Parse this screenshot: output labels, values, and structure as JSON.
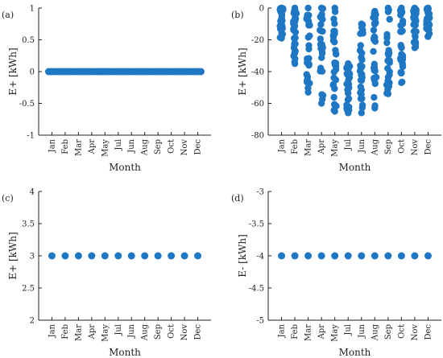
{
  "chart_data": [
    {
      "type": "scatter",
      "panel_label": "(a)",
      "ylabel": "E+ [kWh]",
      "xlabel": "Month",
      "categories": [
        "Jan",
        "Feb",
        "Mar",
        "Apr",
        "May",
        "Jul",
        "Jun",
        "Aug",
        "Sep",
        "Oct",
        "Nov",
        "Dec"
      ],
      "ylim": [
        -1,
        1
      ],
      "yticks": [
        -1,
        -0.5,
        0,
        0.5,
        1
      ],
      "ytick_labels": [
        "-1",
        "-0.5",
        "0",
        "0.5",
        "1"
      ],
      "values": [
        0,
        0,
        0,
        0,
        0,
        0,
        0,
        0,
        0,
        0,
        0,
        0
      ],
      "continuous": true,
      "color": "#1f77c4"
    },
    {
      "type": "scatter",
      "panel_label": "(b)",
      "ylabel": "E+ [kWh]",
      "xlabel": "Month",
      "categories": [
        "Jan",
        "Feb",
        "Mar",
        "Apr",
        "May",
        "Jul",
        "Jun",
        "Aug",
        "Sep",
        "Oct",
        "Nov",
        "Dec"
      ],
      "ylim": [
        -80,
        0
      ],
      "yticks": [
        -80,
        -60,
        -40,
        -20,
        0
      ],
      "ytick_labels": [
        "-80",
        "-60",
        "-40",
        "-20",
        "0"
      ],
      "ranges": [
        {
          "min": -19,
          "max": 0
        },
        {
          "min": -35,
          "max": 0
        },
        {
          "min": -53,
          "max": 0
        },
        {
          "min": -60,
          "max": 0
        },
        {
          "min": -65,
          "max": 0
        },
        {
          "min": -66,
          "max": -35
        },
        {
          "min": -66,
          "max": -10
        },
        {
          "min": -63,
          "max": -2
        },
        {
          "min": -54,
          "max": 0
        },
        {
          "min": -47,
          "max": 0
        },
        {
          "min": -25,
          "max": 0
        },
        {
          "min": -18,
          "max": 0
        }
      ],
      "color": "#1f77c4"
    },
    {
      "type": "scatter",
      "panel_label": "(c)",
      "ylabel": "E+ [kWh]",
      "xlabel": "Month",
      "categories": [
        "Jan",
        "Feb",
        "Mar",
        "Apr",
        "May",
        "Jul",
        "Jun",
        "Aug",
        "Sep",
        "Oct",
        "Nov",
        "Dec"
      ],
      "ylim": [
        2,
        4
      ],
      "yticks": [
        2,
        2.5,
        3,
        3.5,
        4
      ],
      "ytick_labels": [
        "2",
        "2.5",
        "3",
        "3.5",
        "4"
      ],
      "values": [
        3,
        3,
        3,
        3,
        3,
        3,
        3,
        3,
        3,
        3,
        3,
        3
      ],
      "color": "#1f77c4"
    },
    {
      "type": "scatter",
      "panel_label": "(d)",
      "ylabel": "E- [kWh]",
      "xlabel": "Month",
      "categories": [
        "Jan",
        "Feb",
        "Mar",
        "Apr",
        "May",
        "Jul",
        "Jun",
        "Aug",
        "Sep",
        "Oct",
        "Nov",
        "Dec"
      ],
      "ylim": [
        -5,
        -3
      ],
      "yticks": [
        -5,
        -4.5,
        -4,
        -3.5,
        -3
      ],
      "ytick_labels": [
        "-5",
        "-4.5",
        "-4",
        "-3.5",
        "-3"
      ],
      "values": [
        -4,
        -4,
        -4,
        -4,
        -4,
        -4,
        -4,
        -4,
        -4,
        -4,
        -4,
        -4
      ],
      "color": "#1f77c4"
    }
  ]
}
